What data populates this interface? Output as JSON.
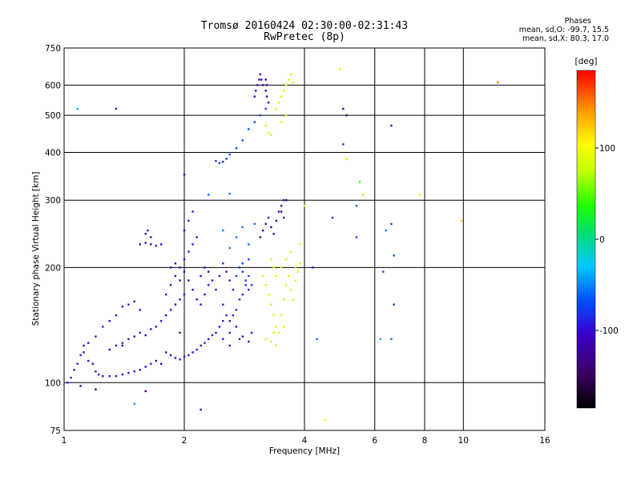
{
  "title": {
    "line1": "Tromsø 20160424 02:30:00-02:31:43",
    "line2": "RwPretec (8p)"
  },
  "phase_stats": {
    "header": "Phases",
    "line_o": "mean, sd,O: -99.7, 15.5",
    "line_x": "mean, sd,X:  80.3, 17.0"
  },
  "colorbar": {
    "unit_label": "[deg]",
    "ticks": [
      {
        "value": 100,
        "label": "100"
      },
      {
        "value": 0,
        "label": "0"
      },
      {
        "value": -100,
        "label": "-100"
      }
    ],
    "range": [
      -185,
      185
    ]
  },
  "chart_data": {
    "type": "scatter",
    "xlabel": "Frequency [MHz]",
    "ylabel": "Stationary phase Virtual Height [km]",
    "xscale": "log",
    "yscale": "log",
    "xlim": [
      1,
      16
    ],
    "ylim": [
      75,
      750
    ],
    "xticks": [
      {
        "value": 1,
        "label": "1"
      },
      {
        "value": 2,
        "label": "2"
      },
      {
        "value": 4,
        "label": "4"
      },
      {
        "value": 6,
        "label": "6"
      },
      {
        "value": 8,
        "label": "8"
      },
      {
        "value": 10,
        "label": "10"
      },
      {
        "value": 16,
        "label": "16"
      }
    ],
    "yticks": [
      {
        "value": 75,
        "label": "75"
      },
      {
        "value": 100,
        "label": "100"
      },
      {
        "value": 200,
        "label": "200"
      },
      {
        "value": 300,
        "label": "300"
      },
      {
        "value": 400,
        "label": "400"
      },
      {
        "value": 500,
        "label": "500"
      },
      {
        "value": 600,
        "label": "600"
      },
      {
        "value": 750,
        "label": "750"
      }
    ],
    "grid": true,
    "color_by": "phase",
    "points": [
      [
        1.02,
        100,
        -92
      ],
      [
        1.04,
        103,
        -90
      ],
      [
        1.06,
        108,
        -100
      ],
      [
        1.08,
        112,
        -95
      ],
      [
        1.1,
        118,
        -98
      ],
      [
        1.12,
        120,
        -100
      ],
      [
        1.15,
        114,
        -102
      ],
      [
        1.18,
        112,
        -97
      ],
      [
        1.2,
        107,
        -99
      ],
      [
        1.22,
        105,
        -101
      ],
      [
        1.25,
        104,
        -98
      ],
      [
        1.3,
        104,
        -100
      ],
      [
        1.35,
        104,
        -103
      ],
      [
        1.4,
        105,
        -99
      ],
      [
        1.45,
        106,
        -100
      ],
      [
        1.5,
        107,
        -97
      ],
      [
        1.55,
        108,
        -101
      ],
      [
        1.6,
        110,
        -100
      ],
      [
        1.65,
        112,
        -96
      ],
      [
        1.7,
        114,
        -99
      ],
      [
        1.75,
        112,
        -102
      ],
      [
        1.12,
        125,
        -95
      ],
      [
        1.15,
        127,
        -100
      ],
      [
        1.2,
        132,
        -97
      ],
      [
        1.25,
        140,
        -94
      ],
      [
        1.3,
        145,
        -100
      ],
      [
        1.35,
        150,
        -105
      ],
      [
        1.4,
        158,
        -98
      ],
      [
        1.45,
        160,
        -95
      ],
      [
        1.5,
        163,
        -99
      ],
      [
        1.55,
        155,
        -101
      ],
      [
        1.3,
        122,
        -100
      ],
      [
        1.35,
        125,
        -98
      ],
      [
        1.4,
        127,
        -96
      ],
      [
        1.45,
        130,
        -100
      ],
      [
        1.5,
        132,
        -99
      ],
      [
        1.55,
        135,
        -98
      ],
      [
        1.6,
        133,
        -101
      ],
      [
        1.65,
        138,
        -96
      ],
      [
        1.7,
        140,
        -100
      ],
      [
        1.75,
        145,
        -98
      ],
      [
        1.8,
        150,
        -100
      ],
      [
        1.85,
        155,
        -97
      ],
      [
        1.9,
        160,
        -101
      ],
      [
        1.95,
        165,
        -99
      ],
      [
        2.0,
        170,
        -98
      ],
      [
        1.55,
        230,
        -101
      ],
      [
        1.6,
        232,
        -99
      ],
      [
        1.65,
        230,
        -100
      ],
      [
        1.7,
        228,
        -102
      ],
      [
        1.75,
        230,
        -98
      ],
      [
        1.6,
        245,
        -100
      ],
      [
        1.62,
        250,
        -95
      ],
      [
        1.65,
        240,
        -97
      ],
      [
        1.8,
        120,
        -95
      ],
      [
        1.85,
        118,
        -98
      ],
      [
        1.9,
        116,
        -101
      ],
      [
        1.95,
        115,
        -100
      ],
      [
        2.0,
        117,
        -97
      ],
      [
        2.05,
        118,
        -98
      ],
      [
        2.1,
        120,
        -100
      ],
      [
        2.15,
        122,
        -99
      ],
      [
        2.2,
        125,
        -101
      ],
      [
        2.25,
        127,
        -98
      ],
      [
        2.3,
        130,
        -100
      ],
      [
        2.35,
        133,
        -95
      ],
      [
        2.4,
        135,
        -97
      ],
      [
        2.45,
        140,
        -94
      ],
      [
        2.5,
        145,
        -92
      ],
      [
        1.8,
        170,
        -101
      ],
      [
        1.85,
        180,
        -99
      ],
      [
        1.9,
        190,
        -100
      ],
      [
        1.95,
        200,
        -98
      ],
      [
        2.0,
        210,
        -96
      ],
      [
        2.05,
        220,
        -100
      ],
      [
        2.1,
        230,
        -97
      ],
      [
        2.15,
        240,
        -99
      ],
      [
        2.0,
        250,
        -95
      ],
      [
        2.05,
        265,
        -98
      ],
      [
        2.1,
        280,
        -94
      ],
      [
        1.85,
        200,
        -100
      ],
      [
        1.9,
        205,
        -95
      ],
      [
        1.95,
        185,
        -101
      ],
      [
        2.0,
        195,
        -99
      ],
      [
        2.05,
        185,
        -100
      ],
      [
        2.1,
        175,
        -97
      ],
      [
        2.15,
        165,
        -99
      ],
      [
        2.2,
        160,
        -102
      ],
      [
        2.25,
        170,
        -98
      ],
      [
        2.3,
        180,
        -95
      ],
      [
        2.2,
        190,
        -100
      ],
      [
        2.25,
        200,
        -97
      ],
      [
        2.3,
        195,
        -101
      ],
      [
        2.35,
        185,
        -98
      ],
      [
        2.4,
        175,
        -100
      ],
      [
        2.45,
        190,
        -95
      ],
      [
        2.5,
        205,
        -92
      ],
      [
        2.55,
        195,
        -99
      ],
      [
        2.6,
        185,
        -88
      ],
      [
        2.65,
        175,
        -90
      ],
      [
        2.5,
        160,
        -97
      ],
      [
        2.55,
        150,
        -93
      ],
      [
        2.6,
        145,
        -95
      ],
      [
        2.65,
        150,
        -86
      ],
      [
        2.7,
        155,
        -90
      ],
      [
        2.75,
        165,
        -82
      ],
      [
        2.8,
        170,
        -88
      ],
      [
        2.85,
        180,
        -80
      ],
      [
        2.9,
        175,
        -85
      ],
      [
        2.7,
        190,
        -78
      ],
      [
        2.75,
        200,
        -84
      ],
      [
        2.8,
        195,
        -76
      ],
      [
        2.85,
        185,
        -80
      ],
      [
        2.9,
        190,
        -74
      ],
      [
        2.95,
        180,
        -78
      ],
      [
        2.8,
        205,
        -72
      ],
      [
        2.9,
        210,
        -75
      ],
      [
        2.5,
        130,
        -96
      ],
      [
        2.6,
        135,
        -92
      ],
      [
        2.7,
        140,
        -98
      ],
      [
        2.8,
        132,
        -100
      ],
      [
        2.9,
        128,
        -95
      ],
      [
        2.95,
        135,
        -105
      ],
      [
        2.6,
        125,
        -90
      ],
      [
        2.75,
        130,
        -87
      ],
      [
        2.4,
        380,
        -84
      ],
      [
        2.45,
        375,
        -80
      ],
      [
        2.5,
        378,
        -82
      ],
      [
        2.55,
        385,
        -78
      ],
      [
        2.6,
        395,
        -75
      ],
      [
        2.7,
        410,
        -73
      ],
      [
        2.8,
        430,
        -70
      ],
      [
        2.9,
        460,
        -68
      ],
      [
        3.0,
        480,
        -66
      ],
      [
        3.1,
        500,
        -70
      ],
      [
        3.2,
        520,
        -72
      ],
      [
        3.0,
        560,
        -112
      ],
      [
        3.02,
        580,
        -115
      ],
      [
        3.05,
        600,
        -110
      ],
      [
        3.08,
        620,
        -118
      ],
      [
        3.1,
        640,
        -112
      ],
      [
        3.12,
        620,
        -115
      ],
      [
        3.15,
        600,
        -120
      ],
      [
        3.2,
        580,
        -113
      ],
      [
        3.22,
        560,
        -117
      ],
      [
        3.25,
        540,
        -114
      ],
      [
        3.2,
        620,
        -115
      ],
      [
        3.22,
        600,
        -112
      ],
      [
        3.1,
        240,
        -125
      ],
      [
        3.15,
        250,
        -120
      ],
      [
        3.2,
        260,
        -128
      ],
      [
        3.25,
        270,
        -118
      ],
      [
        3.3,
        255,
        -125
      ],
      [
        3.35,
        245,
        -130
      ],
      [
        3.4,
        265,
        -122
      ],
      [
        3.45,
        280,
        -126
      ],
      [
        3.5,
        290,
        -120
      ],
      [
        3.55,
        300,
        -118
      ],
      [
        3.15,
        190,
        85
      ],
      [
        3.2,
        180,
        80
      ],
      [
        3.25,
        170,
        90
      ],
      [
        3.3,
        160,
        75
      ],
      [
        3.35,
        150,
        85
      ],
      [
        3.4,
        140,
        80
      ],
      [
        3.45,
        135,
        88
      ],
      [
        3.5,
        150,
        82
      ],
      [
        3.55,
        165,
        78
      ],
      [
        3.6,
        180,
        86
      ],
      [
        3.65,
        190,
        80
      ],
      [
        3.7,
        175,
        84
      ],
      [
        3.75,
        165,
        79
      ],
      [
        3.8,
        185,
        87
      ],
      [
        3.85,
        195,
        81
      ],
      [
        3.9,
        205,
        76
      ],
      [
        3.3,
        210,
        85
      ],
      [
        3.35,
        200,
        78
      ],
      [
        3.4,
        190,
        88
      ],
      [
        3.5,
        200,
        82
      ],
      [
        3.6,
        210,
        79
      ],
      [
        3.7,
        220,
        85
      ],
      [
        3.8,
        200,
        80
      ],
      [
        3.9,
        230,
        84
      ],
      [
        3.2,
        130,
        88
      ],
      [
        3.3,
        128,
        82
      ],
      [
        3.4,
        125,
        86
      ],
      [
        3.35,
        135,
        80
      ],
      [
        3.55,
        140,
        78
      ],
      [
        3.4,
        520,
        80
      ],
      [
        3.45,
        540,
        75
      ],
      [
        3.5,
        560,
        82
      ],
      [
        3.55,
        580,
        78
      ],
      [
        3.6,
        600,
        85
      ],
      [
        3.65,
        620,
        80
      ],
      [
        3.7,
        640,
        76
      ],
      [
        3.75,
        610,
        83
      ],
      [
        3.6,
        500,
        79
      ],
      [
        3.5,
        480,
        84
      ],
      [
        3.2,
        470,
        88
      ],
      [
        3.25,
        450,
        85
      ],
      [
        3.3,
        445,
        80
      ],
      [
        2.7,
        240,
        -60
      ],
      [
        2.8,
        255,
        -55
      ],
      [
        2.6,
        225,
        -48
      ],
      [
        2.9,
        230,
        -58
      ],
      [
        2.5,
        250,
        -52
      ],
      [
        3.0,
        260,
        -62
      ],
      [
        3.5,
        280,
        -138
      ],
      [
        3.55,
        270,
        -135
      ],
      [
        3.6,
        300,
        -140
      ],
      [
        5.0,
        420,
        -80
      ],
      [
        5.0,
        520,
        -120
      ],
      [
        5.1,
        500,
        -125
      ],
      [
        5.1,
        385,
        70
      ],
      [
        5.4,
        290,
        -60
      ],
      [
        5.4,
        240,
        -82
      ],
      [
        5.5,
        335,
        40
      ],
      [
        5.6,
        310,
        70
      ],
      [
        4.9,
        660,
        120
      ],
      [
        4.7,
        270,
        -75
      ],
      [
        4.2,
        200,
        -90
      ],
      [
        4.0,
        290,
        90
      ],
      [
        4.3,
        130,
        -60
      ],
      [
        4.5,
        80,
        100
      ],
      [
        6.2,
        130,
        -40
      ],
      [
        6.3,
        195,
        -70
      ],
      [
        6.4,
        250,
        -50
      ],
      [
        6.6,
        130,
        -55
      ],
      [
        6.6,
        470,
        -100
      ],
      [
        6.6,
        260,
        -70
      ],
      [
        6.7,
        215,
        -65
      ],
      [
        6.7,
        160,
        -80
      ],
      [
        7.8,
        310,
        115
      ],
      [
        9.9,
        265,
        120
      ],
      [
        12.2,
        610,
        150
      ],
      [
        1.08,
        520,
        -40
      ],
      [
        1.35,
        520,
        -100
      ],
      [
        1.4,
        125,
        -130
      ],
      [
        1.1,
        98,
        -120
      ],
      [
        1.6,
        95,
        -140
      ],
      [
        2.2,
        85,
        -120
      ],
      [
        1.5,
        88,
        -45
      ],
      [
        1.2,
        96,
        -150
      ],
      [
        2.0,
        350,
        -100
      ],
      [
        2.3,
        310,
        -60
      ],
      [
        1.95,
        135,
        -140
      ],
      [
        2.6,
        312,
        -55
      ]
    ]
  }
}
